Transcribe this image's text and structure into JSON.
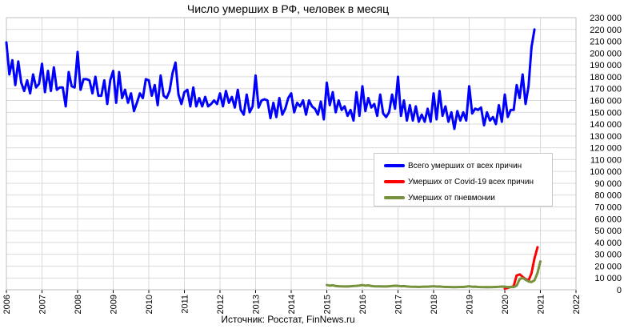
{
  "title": "Число умерших в РФ, человек в месяц",
  "source": "Источник: Росстат, FinNews.ru",
  "chart_data": {
    "type": "line",
    "title": "Число умерших в РФ, человек в месяц",
    "xlabel": "",
    "ylabel": "",
    "xlim": [
      2006,
      2022
    ],
    "ylim": [
      0,
      230000
    ],
    "x_ticks": [
      "2006",
      "2007",
      "2008",
      "2009",
      "2010",
      "2011",
      "2012",
      "2013",
      "2014",
      "2015",
      "2016",
      "2017",
      "2018",
      "2019",
      "2020",
      "2021",
      "2022"
    ],
    "y_ticks": [
      "0",
      "10 000",
      "20 000",
      "30 000",
      "40 000",
      "50 000",
      "60 000",
      "70 000",
      "80 000",
      "90 000",
      "100 000",
      "110 000",
      "120 000",
      "130 000",
      "140 000",
      "150 000",
      "160 000",
      "170 000",
      "180 000",
      "190 000",
      "200 000",
      "210 000",
      "220 000",
      "230 000"
    ],
    "grid": true,
    "legend_position": "right",
    "series": [
      {
        "name": "Всего умерших от всех причин",
        "color": "#0000ff",
        "start_year": 2006,
        "values": [
          209000,
          182000,
          194000,
          173000,
          193000,
          175000,
          168000,
          177000,
          166000,
          182000,
          171000,
          174000,
          191000,
          167000,
          185000,
          168000,
          188000,
          169000,
          171000,
          171000,
          155000,
          184000,
          172000,
          171000,
          201000,
          169000,
          178000,
          178000,
          177000,
          166000,
          180000,
          164000,
          164000,
          177000,
          157000,
          177000,
          185000,
          158000,
          184000,
          162000,
          169000,
          158000,
          166000,
          151000,
          158000,
          166000,
          162000,
          178000,
          177000,
          164000,
          173000,
          156000,
          181000,
          164000,
          162000,
          168000,
          183000,
          192000,
          165000,
          157000,
          167000,
          169000,
          155000,
          171000,
          155000,
          162000,
          155000,
          163000,
          155000,
          157000,
          160000,
          157000,
          166000,
          155000,
          168000,
          158000,
          163000,
          154000,
          169000,
          152000,
          148000,
          165000,
          150000,
          155000,
          181000,
          154000,
          160000,
          161000,
          160000,
          145000,
          158000,
          146000,
          162000,
          148000,
          153000,
          162000,
          166000,
          150000,
          158000,
          155000,
          160000,
          148000,
          160000,
          155000,
          153000,
          148000,
          159000,
          144000,
          175000,
          156000,
          167000,
          150000,
          160000,
          152000,
          155000,
          147000,
          152000,
          143000,
          167000,
          147000,
          172000,
          151000,
          162000,
          154000,
          157000,
          147000,
          165000,
          149000,
          146000,
          150000,
          165000,
          153000,
          180000,
          147000,
          160000,
          143000,
          156000,
          143000,
          155000,
          142000,
          148000,
          142000,
          153000,
          142000,
          166000,
          144000,
          168000,
          147000,
          155000,
          142000,
          150000,
          136000,
          151000,
          143000,
          150000,
          143000,
          172000,
          149000,
          153000,
          152000,
          154000,
          139000,
          150000,
          143000,
          146000,
          140000,
          156000,
          142000,
          165000,
          146000,
          152000,
          152000,
          173000,
          162000,
          182000,
          157000,
          172000,
          205000,
          220000
        ]
      },
      {
        "name": "Умерших  от Covid-19 всех причин",
        "color": "#ff0000",
        "points": [
          [
            2020.0,
            1000
          ],
          [
            2020.25,
            3000
          ],
          [
            2020.33,
            12000
          ],
          [
            2020.42,
            13000
          ],
          [
            2020.5,
            11000
          ],
          [
            2020.58,
            9000
          ],
          [
            2020.67,
            8000
          ],
          [
            2020.75,
            14000
          ],
          [
            2020.83,
            26000
          ],
          [
            2020.92,
            36000
          ]
        ]
      },
      {
        "name": "Умерших  от пневмонии",
        "color": "#76923c",
        "start_year": 2015,
        "values": [
          4000,
          3500,
          3800,
          3200,
          3000,
          2900,
          2800,
          2800,
          3000,
          3200,
          3300,
          3600,
          4000,
          3500,
          3700,
          3200,
          3000,
          2900,
          2900,
          2800,
          2800,
          3000,
          3200,
          3400,
          3300,
          3000,
          3100,
          2800,
          2600,
          2500,
          2500,
          2400,
          2500,
          2600,
          2600,
          2800,
          3000,
          2700,
          2800,
          2500,
          2400,
          2400,
          2300,
          2200,
          2300,
          2400,
          2400,
          2600,
          3000,
          2500,
          2600,
          2400,
          2300,
          2200,
          2300,
          2200,
          2300,
          2400,
          2500,
          2700,
          2600,
          2300,
          2400,
          2300,
          3500,
          9000,
          10000,
          8500,
          7000,
          6500,
          8000,
          14000,
          24000
        ]
      }
    ]
  }
}
